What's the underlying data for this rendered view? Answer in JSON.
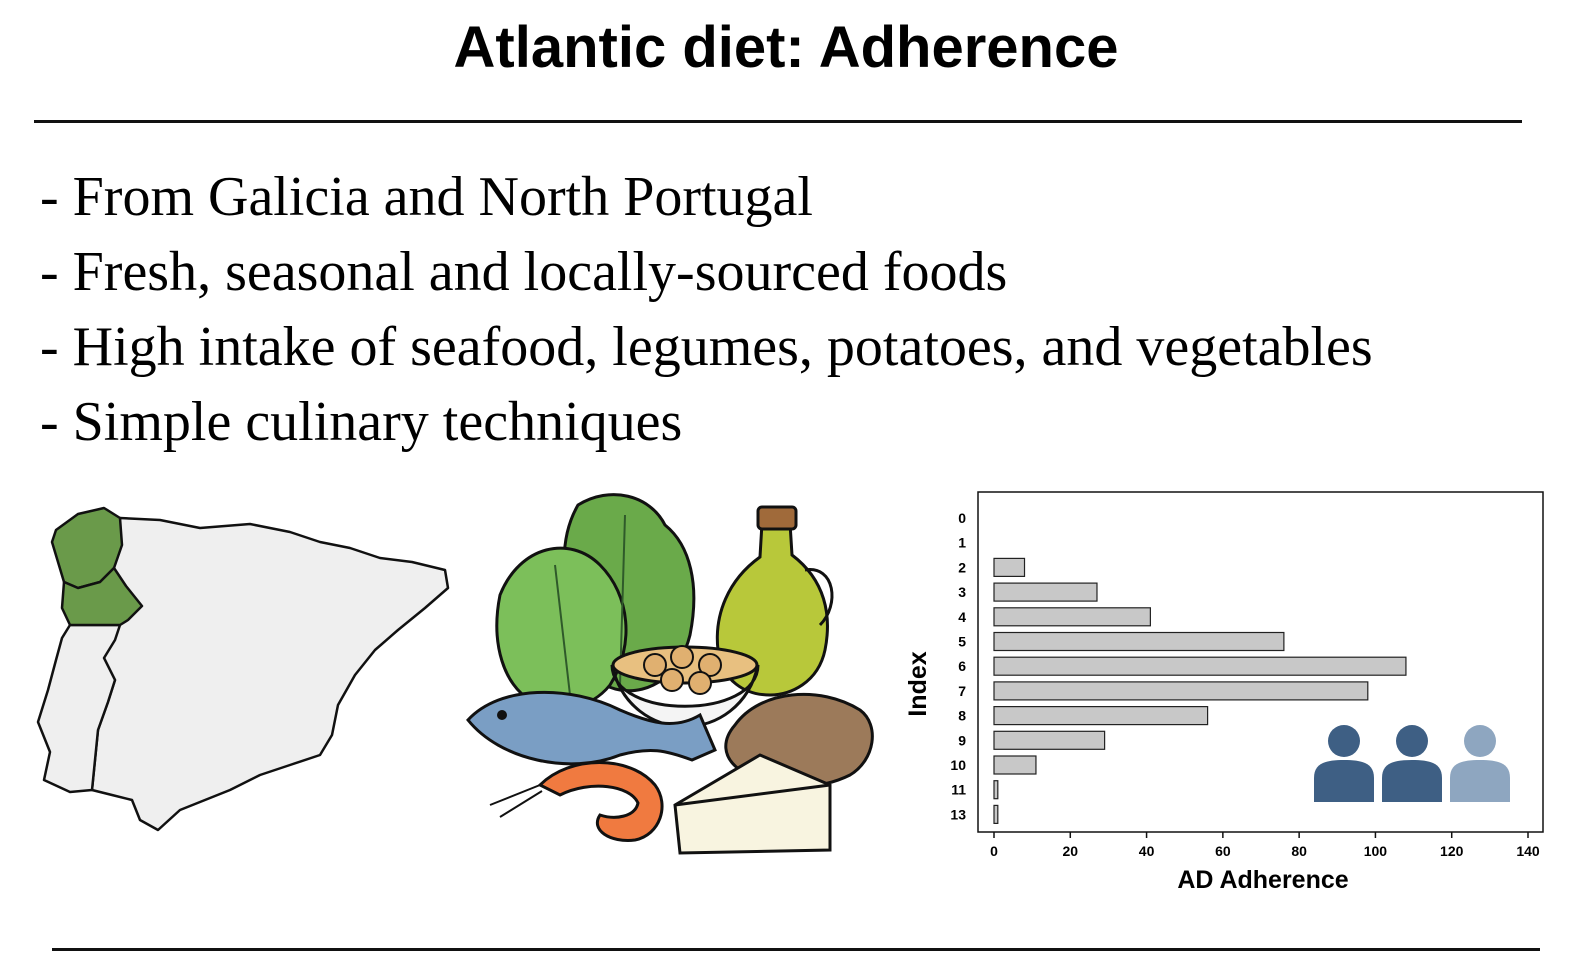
{
  "header": {
    "title": "Atlantic diet: Adherence"
  },
  "bullets": [
    "- From Galicia and North Portugal",
    "- Fresh, seasonal and locally-sourced foods",
    "- High intake of seafood,  legumes, potatoes, and vegetables",
    "- Simple culinary techniques"
  ],
  "colors": {
    "region_highlight": "#6a9a4a",
    "land": "#efefef",
    "bar_fill": "#c8c8c8",
    "person_dark": "#3e5f84",
    "person_light": "#8ea6c0"
  },
  "icons": [
    "iberia-map-icon",
    "food-illustration-icon",
    "people-group-icon"
  ],
  "chart_data": {
    "type": "bar",
    "orientation": "horizontal",
    "categories": [
      "0",
      "1",
      "2",
      "3",
      "4",
      "5",
      "6",
      "7",
      "8",
      "9",
      "10",
      "11",
      "13"
    ],
    "values": [
      0,
      0,
      8,
      27,
      41,
      76,
      108,
      98,
      56,
      29,
      11,
      1,
      1
    ],
    "xlabel": "AD Adherence",
    "ylabel": "Index",
    "xlim": [
      0,
      140
    ],
    "xticks": [
      "0",
      "20",
      "40",
      "60",
      "80",
      "100",
      "120",
      "140"
    ],
    "grid": false
  }
}
